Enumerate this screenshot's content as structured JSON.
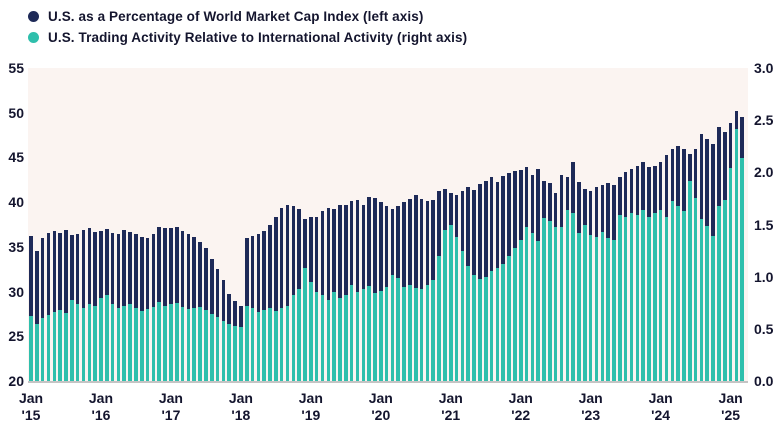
{
  "colors": {
    "page_bg": "#ffffff",
    "plot_bg": "#fbf4f1",
    "text": "#14152e",
    "axis_line": "#c4c4c4",
    "navy": "#1e2a58",
    "teal": "#2fbfac"
  },
  "chart_data": {
    "type": "bar",
    "title": "",
    "x_unit": "month",
    "x_start": "2015-01",
    "x_end": "2025-03",
    "grid": false,
    "legend_position": "top-left",
    "left_axis": {
      "min": 20,
      "max": 55,
      "ticks": [
        "55",
        "50",
        "45",
        "40",
        "35",
        "30",
        "25",
        "20"
      ]
    },
    "right_axis": {
      "min": 0,
      "max": 3,
      "ticks": [
        "3.0",
        "2.5",
        "2.0",
        "1.5",
        "1.0",
        "0.5",
        "0.0"
      ]
    },
    "x_tick_labels": [
      {
        "line1": "Jan",
        "line2": "'15"
      },
      {
        "line1": "Jan",
        "line2": "'16"
      },
      {
        "line1": "Jan",
        "line2": "'17"
      },
      {
        "line1": "Jan",
        "line2": "'18"
      },
      {
        "line1": "Jan",
        "line2": "'19"
      },
      {
        "line1": "Jan",
        "line2": "'20"
      },
      {
        "line1": "Jan",
        "line2": "'21"
      },
      {
        "line1": "Jan",
        "line2": "'22"
      },
      {
        "line1": "Jan",
        "line2": "'23"
      },
      {
        "line1": "Jan",
        "line2": "'24"
      },
      {
        "line1": "Jan",
        "line2": "'25"
      }
    ],
    "series": [
      {
        "name": "U.S. as a Percentage of World Market Cap Index (left axis)",
        "axis": "left",
        "color": "#1e2a58",
        "values": [
          36.2,
          34.5,
          36.0,
          36.6,
          36.8,
          36.6,
          36.9,
          36.3,
          36.4,
          36.9,
          37.1,
          36.7,
          36.8,
          37.0,
          36.6,
          36.4,
          36.9,
          36.7,
          36.4,
          36.1,
          36.0,
          36.4,
          37.2,
          37.1,
          37.1,
          37.2,
          36.8,
          36.4,
          36.1,
          35.6,
          34.9,
          33.7,
          32.5,
          31.3,
          29.7,
          29.0,
          28.4,
          36.0,
          36.2,
          36.4,
          36.8,
          37.5,
          38.3,
          39.4,
          39.7,
          39.6,
          39.2,
          38.1,
          38.3,
          38.4,
          39.0,
          39.4,
          39.2,
          39.7,
          39.7,
          40.1,
          40.3,
          39.7,
          40.6,
          40.5,
          40.0,
          39.6,
          39.2,
          39.6,
          40.0,
          40.4,
          40.8,
          40.4,
          40.1,
          40.3,
          41.2,
          41.5,
          41.0,
          40.8,
          41.3,
          41.7,
          41.4,
          42.0,
          42.4,
          42.8,
          42.3,
          42.9,
          43.3,
          43.5,
          43.6,
          43.9,
          43.0,
          43.7,
          42.4,
          42.1,
          41.0,
          43.0,
          42.8,
          44.5,
          42.3,
          41.5,
          41.3,
          41.7,
          41.9,
          42.1,
          41.9,
          42.8,
          43.4,
          43.7,
          44.1,
          44.5,
          43.9,
          44.1,
          44.5,
          45.3,
          45.9,
          46.3,
          46.0,
          45.4,
          45.9,
          47.6,
          47.1,
          46.5,
          48.4,
          47.8,
          48.9,
          50.2,
          49.5
        ]
      },
      {
        "name": "U.S. Trading Activity Relative to International Activity (right axis)",
        "axis": "right",
        "color": "#2fbfac",
        "values": [
          0.62,
          0.55,
          0.6,
          0.63,
          0.66,
          0.68,
          0.65,
          0.78,
          0.74,
          0.7,
          0.74,
          0.72,
          0.8,
          0.82,
          0.74,
          0.7,
          0.72,
          0.74,
          0.7,
          0.67,
          0.69,
          0.71,
          0.76,
          0.72,
          0.74,
          0.75,
          0.71,
          0.69,
          0.7,
          0.71,
          0.68,
          0.64,
          0.61,
          0.58,
          0.55,
          0.53,
          0.52,
          0.72,
          0.7,
          0.66,
          0.68,
          0.7,
          0.67,
          0.7,
          0.72,
          0.82,
          0.88,
          1.08,
          0.95,
          0.85,
          0.82,
          0.78,
          0.85,
          0.8,
          0.82,
          0.92,
          0.85,
          0.88,
          0.91,
          0.84,
          0.86,
          0.9,
          1.02,
          0.99,
          0.9,
          0.92,
          0.89,
          0.88,
          0.92,
          0.97,
          1.2,
          1.45,
          1.5,
          1.38,
          1.25,
          1.1,
          1.02,
          0.98,
          1.0,
          1.05,
          1.08,
          1.12,
          1.2,
          1.28,
          1.35,
          1.48,
          1.42,
          1.34,
          1.56,
          1.53,
          1.48,
          1.48,
          1.64,
          1.61,
          1.42,
          1.5,
          1.4,
          1.38,
          1.43,
          1.37,
          1.35,
          1.59,
          1.57,
          1.61,
          1.59,
          1.64,
          1.57,
          1.61,
          1.64,
          1.57,
          1.73,
          1.68,
          1.63,
          1.92,
          1.75,
          1.55,
          1.49,
          1.39,
          1.68,
          1.74,
          2.04,
          2.42,
          2.14
        ]
      }
    ]
  }
}
